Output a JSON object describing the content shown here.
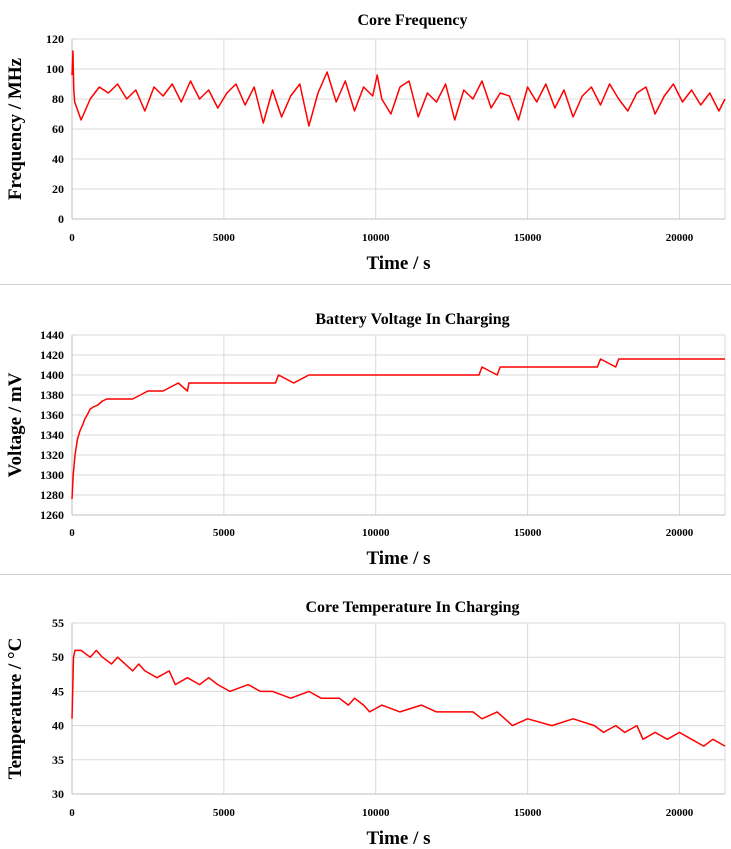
{
  "chart_data": [
    {
      "type": "line",
      "title": "Core Frequency",
      "xlabel": "Time / s",
      "ylabel": "Frequency / MHz",
      "xlim": [
        0,
        21500
      ],
      "ylim": [
        0,
        120
      ],
      "xticks": [
        0,
        5000,
        10000,
        15000,
        20000
      ],
      "yticks": [
        0,
        20,
        40,
        60,
        80,
        100,
        120
      ],
      "grid": true,
      "color": "#ff0000",
      "series": [
        {
          "x": [
            0,
            30,
            60,
            90,
            300,
            600,
            900,
            1200,
            1500,
            1800,
            2100,
            2400,
            2700,
            3000,
            3300,
            3600,
            3900,
            4200,
            4500,
            4800,
            5100,
            5400,
            5700,
            6000,
            6300,
            6600,
            6900,
            7200,
            7500,
            7800,
            8100,
            8400,
            8700,
            9000,
            9300,
            9600,
            9900,
            10050,
            10200,
            10500,
            10800,
            11100,
            11400,
            11700,
            12000,
            12300,
            12600,
            12900,
            13200,
            13500,
            13800,
            14100,
            14400,
            14700,
            15000,
            15300,
            15600,
            15900,
            16200,
            16500,
            16800,
            17100,
            17400,
            17700,
            18000,
            18300,
            18600,
            18900,
            19200,
            19500,
            19800,
            20100,
            20400,
            20700,
            21000,
            21300,
            21500
          ],
          "y": [
            96,
            112,
            86,
            78,
            66,
            80,
            88,
            84,
            90,
            80,
            86,
            72,
            88,
            82,
            90,
            78,
            92,
            80,
            86,
            74,
            84,
            90,
            76,
            88,
            64,
            86,
            68,
            82,
            90,
            62,
            84,
            98,
            78,
            92,
            72,
            88,
            82,
            96,
            80,
            70,
            88,
            92,
            68,
            84,
            78,
            90,
            66,
            86,
            80,
            92,
            74,
            84,
            82,
            66,
            88,
            78,
            90,
            74,
            86,
            68,
            82,
            88,
            76,
            90,
            80,
            72,
            84,
            88,
            70,
            82,
            90,
            78,
            86,
            76,
            84,
            72,
            80
          ]
        }
      ]
    },
    {
      "type": "line",
      "title": "Battery Voltage In Charging",
      "xlabel": "Time / s",
      "ylabel": "Voltage / mV",
      "xlim": [
        0,
        21500
      ],
      "ylim": [
        1260,
        1440
      ],
      "xticks": [
        0,
        5000,
        10000,
        15000,
        20000
      ],
      "yticks": [
        1260,
        1280,
        1300,
        1320,
        1340,
        1360,
        1380,
        1400,
        1420,
        1440
      ],
      "grid": true,
      "color": "#ff0000",
      "series": [
        {
          "x": [
            0,
            40,
            100,
            180,
            260,
            350,
            420,
            500,
            600,
            700,
            850,
            1000,
            1150,
            1300,
            1500,
            2000,
            2500,
            2550,
            3000,
            3500,
            3800,
            3850,
            4200,
            6700,
            6800,
            7300,
            7800,
            7850,
            9000,
            13400,
            13500,
            14000,
            14100,
            17300,
            17400,
            17900,
            18000,
            21500
          ],
          "y": [
            1276,
            1300,
            1320,
            1336,
            1344,
            1350,
            1356,
            1360,
            1366,
            1368,
            1370,
            1374,
            1376,
            1376,
            1376,
            1376,
            1384,
            1384,
            1384,
            1392,
            1384,
            1392,
            1392,
            1392,
            1400,
            1392,
            1400,
            1400,
            1400,
            1400,
            1408,
            1400,
            1408,
            1408,
            1416,
            1408,
            1416,
            1416
          ]
        }
      ]
    },
    {
      "type": "line",
      "title": "Core Temperature In Charging",
      "xlabel": "Time / s",
      "ylabel": "Temperature / °C",
      "xlim": [
        0,
        21500
      ],
      "ylim": [
        30,
        55
      ],
      "xticks": [
        0,
        5000,
        10000,
        15000,
        20000
      ],
      "yticks": [
        30,
        35,
        40,
        45,
        50,
        55
      ],
      "grid": true,
      "color": "#ff0000",
      "series": [
        {
          "x": [
            0,
            50,
            100,
            300,
            600,
            800,
            1000,
            1300,
            1500,
            2000,
            2200,
            2400,
            2800,
            3200,
            3400,
            3800,
            4200,
            4500,
            4800,
            5200,
            5800,
            6200,
            6600,
            7200,
            7800,
            8200,
            8800,
            9100,
            9300,
            9600,
            9800,
            10200,
            10800,
            11500,
            12000,
            12600,
            13200,
            13500,
            14000,
            14500,
            15000,
            15800,
            16500,
            17200,
            17500,
            17900,
            18200,
            18600,
            18800,
            19200,
            19600,
            20000,
            20400,
            20800,
            21100,
            21500
          ],
          "y": [
            41,
            50,
            51,
            51,
            50,
            51,
            50,
            49,
            50,
            48,
            49,
            48,
            47,
            48,
            46,
            47,
            46,
            47,
            46,
            45,
            46,
            45,
            45,
            44,
            45,
            44,
            44,
            43,
            44,
            43,
            42,
            43,
            42,
            43,
            42,
            42,
            42,
            41,
            42,
            40,
            41,
            40,
            41,
            40,
            39,
            40,
            39,
            40,
            38,
            39,
            38,
            39,
            38,
            37,
            38,
            37
          ]
        }
      ]
    }
  ]
}
